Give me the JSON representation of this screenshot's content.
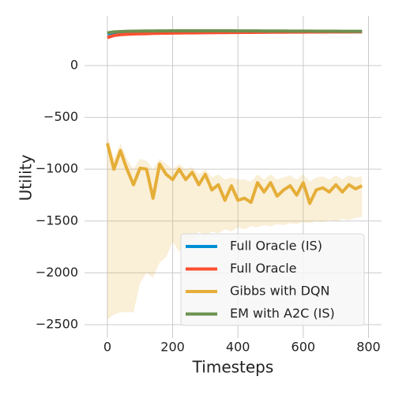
{
  "chart_data": {
    "type": "line",
    "xlabel": "Timesteps",
    "ylabel": "Utility",
    "x": [
      0,
      20,
      40,
      60,
      80,
      100,
      120,
      140,
      160,
      180,
      200,
      220,
      240,
      260,
      280,
      300,
      320,
      340,
      360,
      380,
      400,
      420,
      440,
      460,
      480,
      500,
      520,
      540,
      560,
      580,
      600,
      620,
      640,
      660,
      680,
      700,
      720,
      740,
      760,
      780
    ],
    "series": [
      {
        "name": "Full Oracle (IS)",
        "color": "#008fd5",
        "values": [
          305,
          318,
          322,
          324,
          325,
          325,
          326,
          326,
          326,
          326,
          326,
          326,
          326,
          326,
          326,
          326,
          326,
          326,
          326,
          326,
          326,
          326,
          326,
          326,
          326,
          326,
          326,
          326,
          326,
          326,
          326,
          326,
          326,
          326,
          326,
          326,
          326,
          326,
          326,
          326
        ]
      },
      {
        "name": "Full Oracle",
        "color": "#fc4f30",
        "values": [
          270,
          290,
          298,
          302,
          305,
          307,
          308,
          310,
          311,
          312,
          313,
          314,
          315,
          315,
          316,
          317,
          317,
          318,
          318,
          319,
          319,
          320,
          320,
          321,
          321,
          322,
          322,
          322,
          323,
          323,
          323,
          324,
          324,
          324,
          325,
          325,
          325,
          325,
          326,
          326
        ]
      },
      {
        "name": "Gibbs with DQN",
        "color": "#e5ae38",
        "values": [
          -750,
          -1000,
          -820,
          -1000,
          -1150,
          -990,
          -1000,
          -1280,
          -950,
          -1050,
          -1100,
          -1000,
          -1100,
          -1030,
          -1150,
          -1050,
          -1200,
          -1150,
          -1300,
          -1160,
          -1300,
          -1280,
          -1320,
          -1130,
          -1220,
          -1130,
          -1260,
          -1200,
          -1160,
          -1250,
          -1130,
          -1330,
          -1200,
          -1180,
          -1220,
          -1150,
          -1220,
          -1150,
          -1190,
          -1160
        ],
        "band_upper": [
          -700,
          -900,
          -750,
          -900,
          -1000,
          -900,
          -920,
          -1000,
          -900,
          -950,
          -1000,
          -950,
          -1000,
          -980,
          -1050,
          -1000,
          -1080,
          -1050,
          -1100,
          -1080,
          -1100,
          -1100,
          -1120,
          -1050,
          -1100,
          -1050,
          -1100,
          -1080,
          -1060,
          -1100,
          -1050,
          -1120,
          -1080,
          -1070,
          -1100,
          -1060,
          -1100,
          -1060,
          -1080,
          -1070
        ],
        "band_lower": [
          -2450,
          -2400,
          -2380,
          -2380,
          -2380,
          -2100,
          -2000,
          -2050,
          -1900,
          -1850,
          -1700,
          -1800,
          -1650,
          -1700,
          -1600,
          -1650,
          -1600,
          -1620,
          -1580,
          -1600,
          -1560,
          -1580,
          -1550,
          -1560,
          -1540,
          -1550,
          -1530,
          -1540,
          -1520,
          -1530,
          -1510,
          -1520,
          -1500,
          -1510,
          -1490,
          -1500,
          -1480,
          -1490,
          -1470,
          -1460
        ]
      },
      {
        "name": "EM with A2C (IS)",
        "color": "#6d904f",
        "values": [
          315,
          325,
          328,
          330,
          331,
          332,
          333,
          333,
          334,
          334,
          335,
          335,
          335,
          335,
          335,
          335,
          335,
          335,
          335,
          335,
          334,
          334,
          334,
          334,
          333,
          333,
          333,
          333,
          332,
          332,
          332,
          332,
          331,
          331,
          331,
          331,
          330,
          330,
          330,
          330
        ]
      }
    ],
    "xlim": [
      -70,
      840
    ],
    "ylim": [
      -2630,
      480
    ],
    "xticks": [
      0,
      200,
      400,
      600,
      800
    ],
    "yticks": [
      {
        "value": -2500,
        "label": "−2500"
      },
      {
        "value": -2000,
        "label": "−2000"
      },
      {
        "value": -1500,
        "label": "−1500"
      },
      {
        "value": -1000,
        "label": "−1000"
      },
      {
        "value": -500,
        "label": "−500"
      },
      0
    ],
    "grid": true,
    "legend": "lower right"
  }
}
